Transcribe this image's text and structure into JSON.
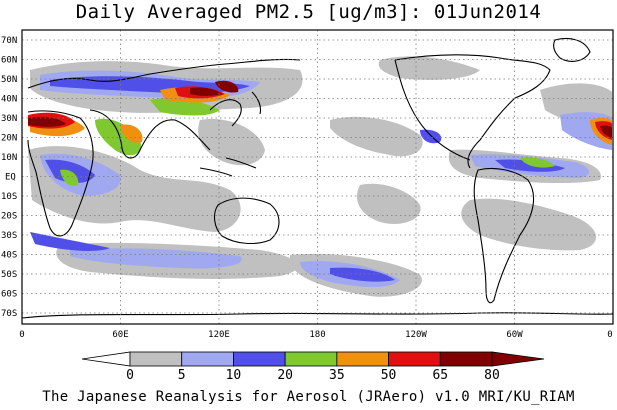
{
  "title": "Daily Averaged PM2.5 [ug/m3]: 01Jun2014",
  "footer": "The Japanese Reanalysis for Aerosol (JRAero) v1.0 MRI/KU_RIAM",
  "map": {
    "lat_labels": [
      "70N",
      "60N",
      "50N",
      "40N",
      "30N",
      "20N",
      "10N",
      "EQ",
      "10S",
      "20S",
      "30S",
      "40S",
      "50S",
      "60S",
      "70S"
    ],
    "lon_labels": [
      "0",
      "60E",
      "120E",
      "180",
      "120W",
      "60W",
      "0"
    ],
    "gridlines": true,
    "ocean_color": "#ffffff",
    "coast_color": "#000000"
  },
  "colorbar": {
    "ticks": [
      "0",
      "5",
      "10",
      "20",
      "35",
      "50",
      "65",
      "80"
    ],
    "colors": [
      "#ffffff",
      "#c0c0c0",
      "#a0a8f0",
      "#5050e8",
      "#80c830",
      "#f09010",
      "#e01010",
      "#800000"
    ]
  }
}
